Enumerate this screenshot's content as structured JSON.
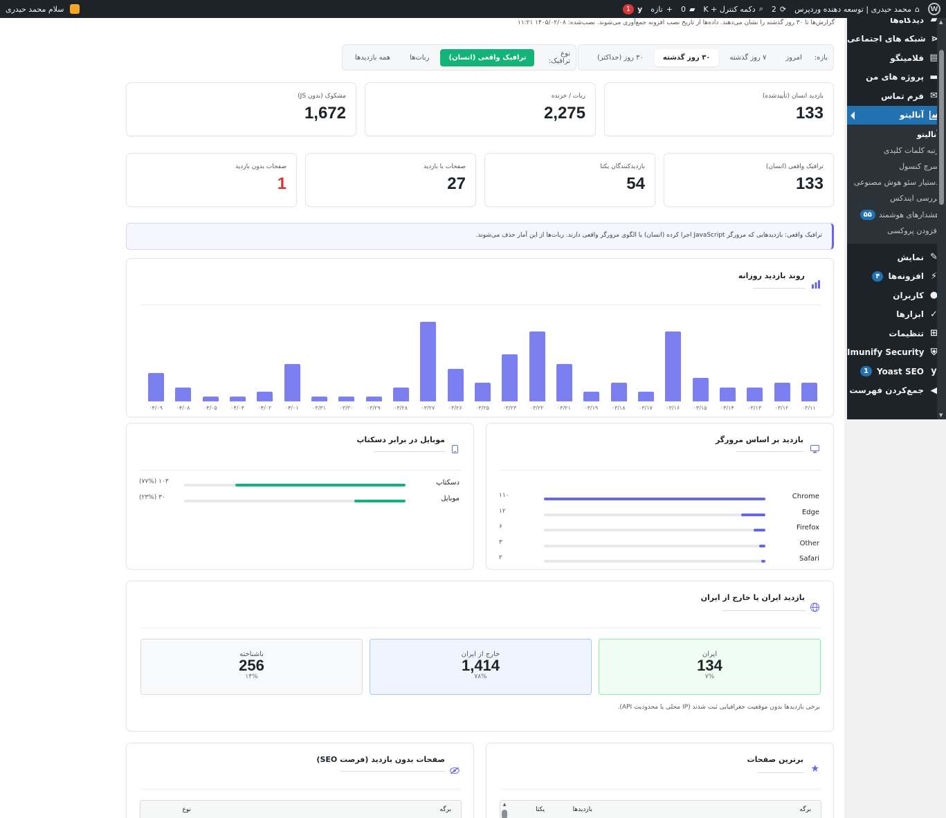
{
  "adminbar": {
    "site_name": "محمد حیدری | توسعه دهنده وردپرس",
    "updates_count": "2",
    "search_label": "دکمه کنترل + K",
    "comments_count": "0",
    "new_label": "تازه",
    "yoast_badge": "1",
    "greeting": "سلام محمد حیدری"
  },
  "sidebar": {
    "top_items": [
      {
        "label": "دیدگاه‌ها",
        "icon": "comment-icon"
      },
      {
        "label": "شبکه های اجتماعی",
        "icon": "share-icon"
      },
      {
        "label": "فلامینگو",
        "icon": "flamingo-icon"
      },
      {
        "label": "پروژه های من",
        "icon": "folder-icon"
      },
      {
        "label": "فرم تماس",
        "icon": "mail-icon"
      }
    ],
    "active_item": "آنالیتو",
    "submenu": [
      "آنالیتو",
      "رتبه کلمات کلیدی",
      "سرچ کنسول",
      "دستیار سئو هوش مصنوعی",
      "بررسی ایندکس",
      "هشدارهای هوشمند",
      "افزودن پروکسی"
    ],
    "alerts_badge": "۵۵",
    "bottom_items": [
      {
        "label": "نمایش",
        "icon": "paintbrush-icon"
      },
      {
        "label": "افزونه‌ها",
        "icon": "plugin-icon",
        "badge": "۴"
      },
      {
        "label": "کاربران",
        "icon": "user-icon"
      },
      {
        "label": "ابزارها",
        "icon": "wrench-icon"
      },
      {
        "label": "تنظیمات",
        "icon": "settings-icon"
      },
      {
        "label": "Imunify Security",
        "icon": "shield-icon"
      },
      {
        "label": "Yoast SEO",
        "icon": "yoast-icon",
        "badge": "1"
      },
      {
        "label": "جمع‌کردن فهرست",
        "icon": "collapse-icon"
      }
    ]
  },
  "notice": "گزارش‌ها تا ۳۰ روز گذشته را نشان می‌دهند. داده‌ها از تاریخ نصب افزونه جمع‌آوری می‌شوند. نصب‌شده: ۱۴۰۵/۰۲/۰۸ ۱۱:۲۱",
  "period": {
    "label": "بازه:",
    "options": [
      "امروز",
      "۷ روز گذشته",
      "۳۰ روز گذشته",
      "۳۰ روز (حداکثر)"
    ],
    "selected": "۳۰ روز گذشته"
  },
  "traffic": {
    "label": "نوع ترافیک:",
    "options": [
      "ترافیک واقعی (انسان)",
      "ربات‌ها",
      "همه بازدیدها"
    ],
    "selected": "ترافیک واقعی (انسان)"
  },
  "stats_top": [
    {
      "label": "بازدید انسان (تأییدشده)",
      "value": "133"
    },
    {
      "label": "ربات / خزنده",
      "value": "2,275"
    },
    {
      "label": "مشکوک (بدون JS)",
      "value": "1,672"
    }
  ],
  "stats_mid": [
    {
      "label": "ترافیک واقعی (انسان)",
      "value": "133"
    },
    {
      "label": "بازدیدکنندگان یکتا",
      "value": "54"
    },
    {
      "label": "صفحات با بازدید",
      "value": "27"
    },
    {
      "label": "صفحات بدون بازدید",
      "value": "1"
    }
  ],
  "info_box": "ترافیک واقعی: بازدیدهایی که مرورگر JavaScript اجرا کرده (انسان) یا الگوی مرورگر واقعی دارند. ربات‌ها از این آمار حذف می‌شوند.",
  "daily_chart": {
    "title": "روند بازدید روزانه",
    "icon": "bar-chart-icon",
    "bar_color": "#7b7ff0"
  },
  "chart_data": {
    "type": "bar",
    "title": "روند بازدید روزانه",
    "categories": [
      "۰۴/۰۹",
      "۰۴/۰۸",
      "۰۴/۰۵",
      "۰۴/۰۴",
      "۰۴/۰۲",
      "۰۴/۰۱",
      "۰۳/۳۱",
      "۰۳/۳۰",
      "۰۳/۲۹",
      "۰۳/۲۸",
      "۰۳/۲۷",
      "۰۳/۲۶",
      "۰۳/۲۵",
      "۰۳/۲۳",
      "۰۳/۲۲",
      "۰۳/۲۱",
      "۰۳/۱۹",
      "۰۳/۱۸",
      "۰۳/۱۷",
      "۰۳/۱۶",
      "۰۳/۱۵",
      "۰۳/۱۴",
      "۰۳/۱۳",
      "۰۳/۱۲",
      "۰۳/۱۱"
    ],
    "values": [
      6,
      3,
      1,
      1,
      2,
      8,
      1,
      1,
      1,
      3,
      17,
      7,
      4,
      10,
      15,
      8,
      2,
      4,
      2,
      15,
      5,
      3,
      3,
      4,
      4
    ],
    "ylim": [
      0,
      17
    ]
  },
  "browsers": {
    "title": "بازدید بر اساس مرورگر",
    "icon": "monitor-icon",
    "color": "#6468e6",
    "max": 110,
    "items": [
      {
        "name": "Chrome",
        "value": 110,
        "label": "۱۱۰"
      },
      {
        "name": "Edge",
        "value": 12,
        "label": "۱۲"
      },
      {
        "name": "Firefox",
        "value": 6,
        "label": "۶"
      },
      {
        "name": "Other",
        "value": 3,
        "label": "۳"
      },
      {
        "name": "Safari",
        "value": 2,
        "label": "۲"
      }
    ]
  },
  "devices": {
    "title": "موبایل در برابر دسکتاپ",
    "icon": "mobile-icon",
    "color": "#13b37a",
    "items": [
      {
        "name": "دسکتاپ",
        "percent": 77,
        "label": "۱۰۳ (۷۷%)"
      },
      {
        "name": "موبایل",
        "percent": 23,
        "label": "۳۰ (۲۳%)"
      }
    ]
  },
  "geo": {
    "title": "بازدید ایران یا خارج از ایران",
    "icon": "globe-icon",
    "items": [
      {
        "name": "ایران",
        "value": "134",
        "percent": "۷%",
        "bg": "#f0fdf4",
        "border": "#86efac"
      },
      {
        "name": "خارج از ایران",
        "value": "1,414",
        "percent": "۷۸%",
        "bg": "#eef5ff",
        "border": "#a8c8f0"
      },
      {
        "name": "ناشناخته",
        "value": "256",
        "percent": "۱۴%",
        "bg": "#f8f9fa",
        "border": "#dcdcde"
      }
    ],
    "note": "برخی بازدیدها بدون موقعیت جغرافیایی ثبت شدند (IP محلی یا محدودیت API)."
  },
  "top_pages": {
    "title": "برترین صفحات",
    "icon": "star-icon",
    "columns": [
      "برگه",
      "بازدیدها",
      "یکتا"
    ]
  },
  "no_visit_pages": {
    "title": "صفحات بدون بازدید (فرصت SEO)",
    "icon": "eye-slash-icon",
    "columns": [
      "برگه",
      "نوع"
    ]
  }
}
